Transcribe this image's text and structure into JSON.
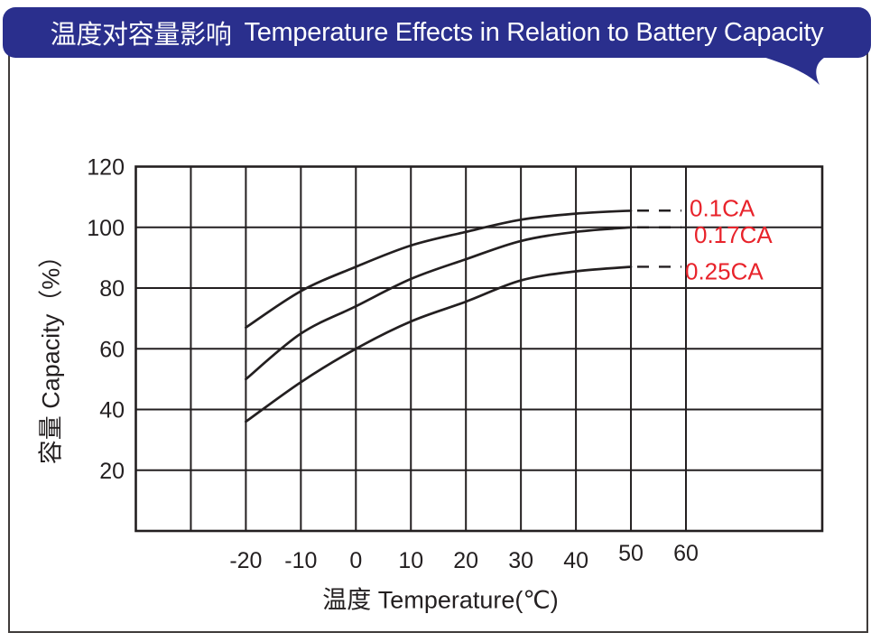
{
  "page": {
    "background": "#FFFFFF",
    "border_color": "#3F3B3A"
  },
  "banner": {
    "title_zh": "温度对容量影响",
    "title_en": "Temperature Effects in Relation to Battery Capacity",
    "bg_color": "#2A2F8D",
    "text_color": "#FFFFFF"
  },
  "chart_data": {
    "type": "line",
    "title": "温度对容量影响 Temperature Effects in Relation to Battery Capacity",
    "xlabel": "温度  Temperature(℃)",
    "ylabel": "容量  Capacity（%）",
    "x_tick_labels": [
      "-20",
      "-10",
      "0",
      "10",
      "20",
      "30",
      "40",
      "50",
      "60"
    ],
    "x_tick_values": [
      -20,
      -10,
      0,
      10,
      20,
      30,
      40,
      50,
      60
    ],
    "y_tick_labels": [
      "120",
      "100",
      "80",
      "60",
      "40",
      "20"
    ],
    "y_tick_values": [
      120,
      100,
      80,
      60,
      40,
      20
    ],
    "xlim": [
      -40,
      85
    ],
    "ylim": [
      0,
      120
    ],
    "x_grid_step": 10,
    "x_grid_range": [
      -40,
      60
    ],
    "y_grid_step": 20,
    "grid": true,
    "ink_color": "#231F20",
    "series_label_color": "#E8232B",
    "series": [
      {
        "name": "0.1CA",
        "x": [
          -20,
          -10,
          0,
          10,
          20,
          30,
          40,
          50
        ],
        "y": [
          67,
          79,
          87,
          94,
          98.5,
          102.5,
          104.5,
          105.5
        ]
      },
      {
        "name": "0.17CA",
        "x": [
          -20,
          -10,
          0,
          10,
          20,
          30,
          40,
          50
        ],
        "y": [
          50,
          65,
          74,
          83,
          89.5,
          95.5,
          98.5,
          100
        ]
      },
      {
        "name": "0.25CA",
        "x": [
          -20,
          -10,
          0,
          10,
          20,
          30,
          40,
          50
        ],
        "y": [
          36,
          49,
          60,
          69,
          75.5,
          82.5,
          85.5,
          87
        ]
      }
    ],
    "dashed_leaders": true
  }
}
